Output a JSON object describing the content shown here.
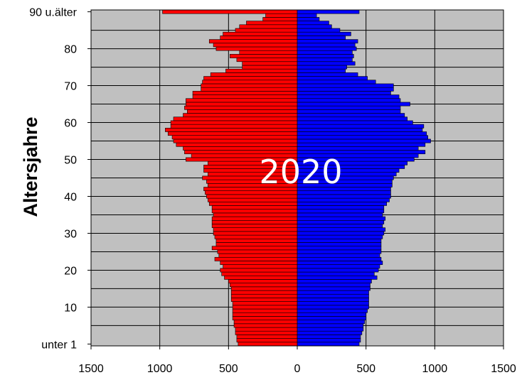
{
  "chart_data": {
    "type": "bar",
    "orientation": "horizontal",
    "overlay_label": "2020",
    "ylabel": "Altersjahre",
    "x_ticks": [
      "1500",
      "1000",
      "500",
      "0",
      "500",
      "1000",
      "1500"
    ],
    "y_tick_labels": [
      {
        "age": 0,
        "label": "unter 1"
      },
      {
        "age": 10,
        "label": "10"
      },
      {
        "age": 20,
        "label": "20"
      },
      {
        "age": 30,
        "label": "30"
      },
      {
        "age": 40,
        "label": "40"
      },
      {
        "age": 50,
        "label": "50"
      },
      {
        "age": 60,
        "label": "60"
      },
      {
        "age": 70,
        "label": "70"
      },
      {
        "age": 80,
        "label": "80"
      },
      {
        "age": 90,
        "label": "90 u.älter"
      }
    ],
    "xlim": [
      -1500,
      1500
    ],
    "ylim": [
      0,
      90
    ],
    "grid": true,
    "background": "#c0c0c0",
    "ages": [
      0,
      1,
      2,
      3,
      4,
      5,
      6,
      7,
      8,
      9,
      10,
      11,
      12,
      13,
      14,
      15,
      16,
      17,
      18,
      19,
      20,
      21,
      22,
      23,
      24,
      25,
      26,
      27,
      28,
      29,
      30,
      31,
      32,
      33,
      34,
      35,
      36,
      37,
      38,
      39,
      40,
      41,
      42,
      43,
      44,
      45,
      46,
      47,
      48,
      49,
      50,
      51,
      52,
      53,
      54,
      55,
      56,
      57,
      58,
      59,
      60,
      61,
      62,
      63,
      64,
      65,
      66,
      67,
      68,
      69,
      70,
      71,
      72,
      73,
      74,
      75,
      76,
      77,
      78,
      79,
      80,
      81,
      82,
      83,
      84,
      85,
      86,
      87,
      88,
      89,
      90
    ],
    "series": [
      {
        "color": "#ff0000",
        "side": "left",
        "values": [
          430,
          440,
          440,
          450,
          450,
          460,
          460,
          470,
          470,
          470,
          470,
          470,
          480,
          480,
          480,
          480,
          490,
          500,
          530,
          550,
          560,
          540,
          560,
          600,
          570,
          580,
          620,
          590,
          590,
          600,
          610,
          610,
          620,
          620,
          620,
          610,
          620,
          620,
          640,
          650,
          660,
          670,
          680,
          650,
          660,
          690,
          650,
          680,
          680,
          650,
          810,
          770,
          820,
          830,
          880,
          900,
          910,
          940,
          960,
          920,
          920,
          900,
          830,
          800,
          820,
          810,
          810,
          760,
          760,
          700,
          700,
          690,
          680,
          630,
          520,
          400,
          400,
          440,
          490,
          420,
          590,
          610,
          640,
          560,
          540,
          450,
          420,
          370,
          250,
          230,
          980
        ]
      },
      {
        "color": "#0000ff",
        "side": "right",
        "values": [
          450,
          460,
          460,
          470,
          480,
          480,
          490,
          500,
          500,
          510,
          520,
          520,
          520,
          520,
          520,
          530,
          530,
          540,
          580,
          560,
          590,
          600,
          620,
          610,
          600,
          610,
          610,
          610,
          610,
          620,
          630,
          640,
          620,
          630,
          640,
          620,
          630,
          630,
          650,
          670,
          680,
          680,
          680,
          690,
          690,
          700,
          720,
          740,
          780,
          800,
          850,
          880,
          930,
          880,
          930,
          970,
          950,
          940,
          910,
          920,
          840,
          800,
          780,
          750,
          750,
          820,
          750,
          740,
          680,
          700,
          700,
          570,
          510,
          440,
          350,
          360,
          420,
          400,
          410,
          400,
          430,
          420,
          440,
          350,
          390,
          310,
          250,
          230,
          160,
          140,
          450
        ]
      }
    ]
  }
}
